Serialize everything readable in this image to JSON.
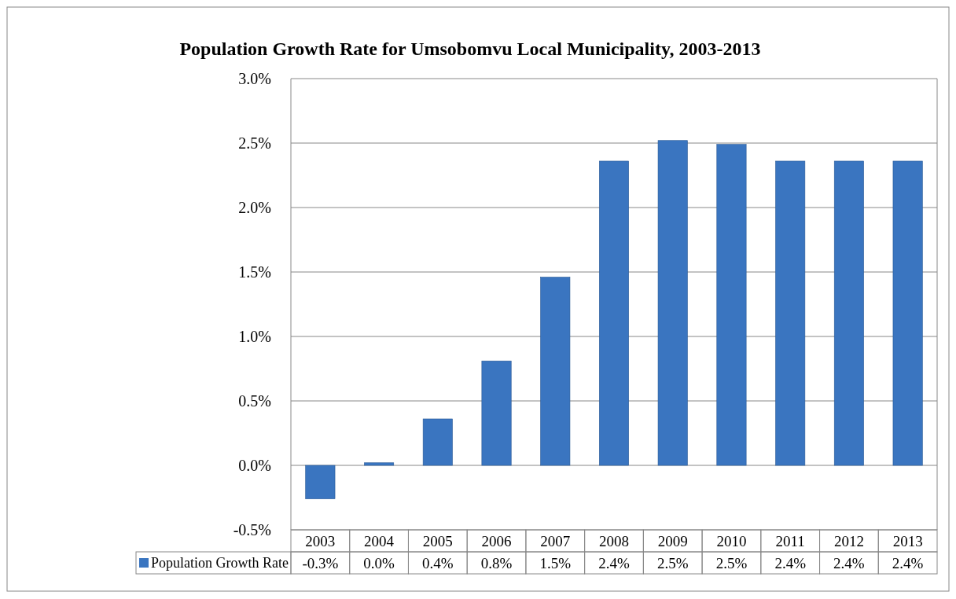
{
  "chart_data": {
    "type": "bar",
    "title": "Population Growth Rate for Umsobomvu Local Municipality, 2003-2013",
    "categories": [
      "2003",
      "2004",
      "2005",
      "2006",
      "2007",
      "2008",
      "2009",
      "2010",
      "2011",
      "2012",
      "2013"
    ],
    "series": [
      {
        "name": "Population Growth Rate",
        "color": "#3a75c0",
        "values": [
          -0.26,
          0.02,
          0.36,
          0.81,
          1.46,
          2.36,
          2.52,
          2.49,
          2.36,
          2.36,
          2.36
        ],
        "value_labels": [
          "-0.3%",
          "0.0%",
          "0.4%",
          "0.8%",
          "1.5%",
          "2.4%",
          "2.5%",
          "2.5%",
          "2.4%",
          "2.4%",
          "2.4%"
        ]
      }
    ],
    "ylim": [
      -0.5,
      3
    ],
    "yticks": [
      {
        "value": -0.5,
        "label": "-0.5%"
      },
      {
        "value": 0,
        "label": "0.0%"
      },
      {
        "value": 0.5,
        "label": "0.5%"
      },
      {
        "value": 1,
        "label": "1.0%"
      },
      {
        "value": 1.5,
        "label": "1.5%"
      },
      {
        "value": 2,
        "label": "2.0%"
      },
      {
        "value": 2.5,
        "label": "2.5%"
      },
      {
        "value": 3,
        "label": "3.0%"
      }
    ],
    "grid": "y",
    "legend": "bottom"
  }
}
